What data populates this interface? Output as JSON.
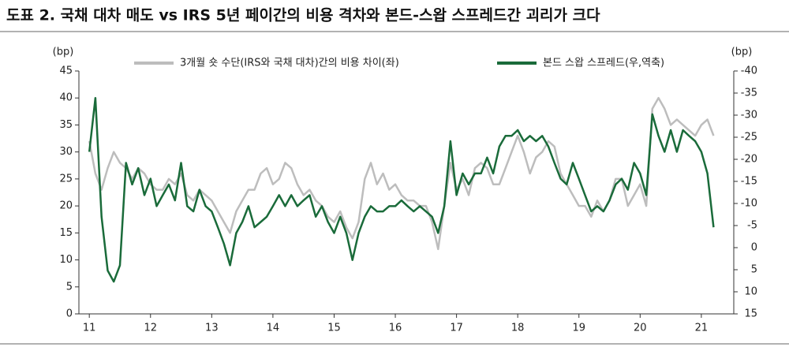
{
  "chart_data": {
    "type": "line",
    "title": "도표 2. 국채 대차 매도 vs IRS 5년 페이간의 비용 격차와 본드-스왑 스프레드간 괴리가 크다",
    "y_label": "(bp)",
    "y2_label": "(bp)",
    "x": [
      11,
      11.1,
      11.2,
      11.3,
      11.4,
      11.5,
      11.6,
      11.7,
      11.8,
      11.9,
      12,
      12.1,
      12.2,
      12.3,
      12.4,
      12.5,
      12.6,
      12.7,
      12.8,
      12.9,
      13,
      13.1,
      13.2,
      13.3,
      13.4,
      13.5,
      13.6,
      13.7,
      13.8,
      13.9,
      14,
      14.1,
      14.2,
      14.3,
      14.4,
      14.5,
      14.6,
      14.7,
      14.8,
      14.9,
      15,
      15.1,
      15.2,
      15.3,
      15.4,
      15.5,
      15.6,
      15.7,
      15.8,
      15.9,
      16,
      16.1,
      16.2,
      16.3,
      16.4,
      16.5,
      16.6,
      16.7,
      16.8,
      16.9,
      17,
      17.1,
      17.2,
      17.3,
      17.4,
      17.5,
      17.6,
      17.7,
      17.8,
      17.9,
      18,
      18.1,
      18.2,
      18.3,
      18.4,
      18.5,
      18.6,
      18.7,
      18.8,
      18.9,
      19,
      19.1,
      19.2,
      19.3,
      19.4,
      19.5,
      19.6,
      19.7,
      19.8,
      19.9,
      20,
      20.1,
      20.2,
      20.3,
      20.4,
      20.5,
      20.6,
      20.7,
      20.8,
      20.9,
      21,
      21.1,
      21.2
    ],
    "xlim": [
      10.83,
      21.53
    ],
    "xticks": [
      11,
      12,
      13,
      14,
      15,
      16,
      17,
      18,
      19,
      20,
      21
    ],
    "ylim": [
      0,
      45
    ],
    "yticks": [
      0,
      5,
      10,
      15,
      20,
      25,
      30,
      35,
      40,
      45
    ],
    "y2lim": [
      15,
      -40
    ],
    "y2ticks": [
      -40,
      -35,
      -30,
      -25,
      -20,
      -15,
      -10,
      -5,
      0,
      5,
      10,
      15
    ],
    "legend": "top",
    "series": [
      {
        "name": "3개월 숏 수단(IRS와 국채 대차)간의 비용 차이(좌)",
        "color": "#bdbdbd",
        "values": [
          32,
          26,
          23,
          27,
          30,
          28,
          27,
          25,
          27,
          26,
          24,
          23,
          23,
          25,
          24,
          26,
          22,
          21,
          23,
          22,
          21,
          19,
          17,
          15,
          19,
          21,
          23,
          23,
          26,
          27,
          24,
          25,
          28,
          27,
          24,
          22,
          23,
          21,
          20,
          18,
          17,
          19,
          16,
          14,
          17,
          25,
          28,
          24,
          26,
          23,
          24,
          22,
          21,
          21,
          20,
          20,
          17,
          12,
          20,
          28,
          23,
          25,
          22,
          27,
          28,
          27,
          24,
          24,
          27,
          30,
          33,
          30,
          26,
          29,
          30,
          32,
          31,
          26,
          24,
          22,
          20,
          20,
          18,
          21,
          19,
          21,
          25,
          25,
          20,
          22,
          24,
          20,
          38,
          40,
          38,
          35,
          36,
          35,
          34,
          33,
          35,
          36,
          33
        ]
      },
      {
        "name": "본드 스왑 스프레드(우,역축)",
        "color": "#1a6b3a",
        "axis": "y2",
        "values": [
          -21.7,
          -33.9,
          -7,
          5.2,
          7.7,
          4,
          -19.2,
          -14.3,
          -18,
          -11.9,
          -15.6,
          -9.4,
          -11.9,
          -14.3,
          -10.7,
          -19.2,
          -9.4,
          -8.2,
          -13.1,
          -9.4,
          -8.2,
          -4.6,
          -0.9,
          4,
          -3.3,
          -5.8,
          -9.4,
          -4.6,
          -5.8,
          -7,
          -9.4,
          -11.9,
          -9.4,
          -11.9,
          -9.4,
          -10.7,
          -11.9,
          -7,
          -9.4,
          -5.8,
          -3.3,
          -7,
          -3.3,
          2.8,
          -3.3,
          -7,
          -9.4,
          -8.2,
          -8.2,
          -9.4,
          -9.4,
          -10.7,
          -9.4,
          -8.2,
          -9.4,
          -8.2,
          -7,
          -3.3,
          -9.4,
          -24.1,
          -11.9,
          -16.8,
          -14.3,
          -16.8,
          -16.8,
          -20.4,
          -16.8,
          -22.9,
          -25.3,
          -25.3,
          -26.6,
          -24.1,
          -25.3,
          -24.1,
          -25.3,
          -22.9,
          -19.2,
          -15.6,
          -14.3,
          -19.2,
          -15.6,
          -11.9,
          -8.2,
          -9.4,
          -8.2,
          -10.7,
          -14.3,
          -15.6,
          -13.1,
          -19.2,
          -16.8,
          -11.9,
          -30.2,
          -25.3,
          -21.7,
          -26.6,
          -21.7,
          -26.6,
          -25.3,
          -24.1,
          -21.7,
          -16.8,
          -4.6
        ]
      }
    ]
  }
}
